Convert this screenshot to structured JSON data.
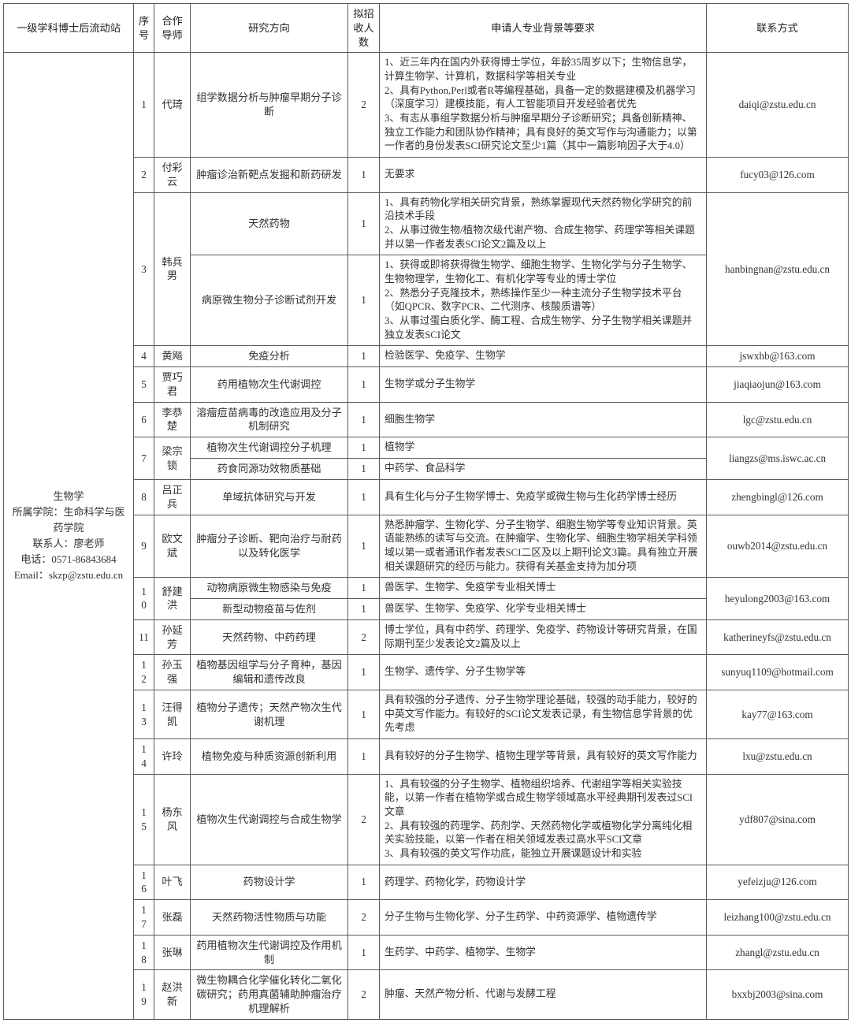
{
  "headers": {
    "c1": "一级学科博士后流动站",
    "c2": "序号",
    "c3": "合作导师",
    "c4": "研究方向",
    "c5": "拟招收人数",
    "c6": "申请人专业背景等要求",
    "c7": "联系方式"
  },
  "station": {
    "line1": "生物学",
    "line2": "所属学院：生命科学与医药学院",
    "line3": "联系人：廖老师",
    "line4": "电话：0571-86843684",
    "line5": "Email：skzp@zstu.edu.cn"
  },
  "rows": [
    {
      "seq": "1",
      "advisor": "代琦",
      "dir": "组学数据分析与肿瘤早期分子诊断",
      "count": "2",
      "req": "1、近三年内在国内外获得博士学位，年龄35周岁以下；生物信息学，计算生物学、计算机，数据科学等相关专业\n2、具有Python,Perl或者R等编程基础，具备一定的数据建模及机器学习（深度学习）建模技能，有人工智能项目开发经验者优先\n3、有志从事组学数据分析与肿瘤早期分子诊断研究；具备创新精神、独立工作能力和团队协作精神；具有良好的英文写作与沟通能力；以第一作者的身份发表SCI研究论文至少1篇（其中一篇影响因子大于4.0）",
      "contact": "daiqi@zstu.edu.cn"
    },
    {
      "seq": "2",
      "advisor": "付彩云",
      "dir": "肿瘤诊治新靶点发掘和新药研发",
      "count": "1",
      "req": "无要求",
      "contact": "fucy03@126.com"
    },
    {
      "seq": "3",
      "advisor": "韩兵男",
      "subrows": [
        {
          "dir": "天然药物",
          "count": "1",
          "req": "1、具有药物化学相关研究背景，熟练掌握现代天然药物化学研究的前沿技术手段\n2、从事过微生物/植物次级代谢产物、合成生物学、药理学等相关课题并以第一作者发表SCI论文2篇及以上"
        },
        {
          "dir": "病原微生物分子诊断试剂开发",
          "count": "1",
          "req": "1、获得或即将获得微生物学、细胞生物学、生物化学与分子生物学、生物物理学，生物化工、有机化学等专业的博士学位\n2、熟悉分子克隆技术，熟练操作至少一种主流分子生物学技术平台（如QPCR、数字PCR、二代测序、核酸质谱等）\n3、从事过蛋白质化学、酶工程、合成生物学、分子生物学相关课题并独立发表SCI论文"
        }
      ],
      "contact": "hanbingnan@zstu.edu.cn"
    },
    {
      "seq": "4",
      "advisor": "黄飚",
      "dir": "免疫分析",
      "count": "1",
      "req": "检验医学、免疫学、生物学",
      "contact": "jswxhb@163.com"
    },
    {
      "seq": "5",
      "advisor": "贾巧君",
      "dir": "药用植物次生代谢调控",
      "count": "1",
      "req": "生物学或分子生物学",
      "contact": "jiaqiaojun@163.com"
    },
    {
      "seq": "6",
      "advisor": "李恭楚",
      "dir": "溶瘤痘苗病毒的改造应用及分子机制研究",
      "count": "1",
      "req": "细胞生物学",
      "contact": "lgc@zstu.edu.cn"
    },
    {
      "seq": "7",
      "advisor": "梁宗锁",
      "subrows": [
        {
          "dir": "植物次生代谢调控分子机理",
          "count": "1",
          "req": "植物学"
        },
        {
          "dir": "药食同源功效物质基础",
          "count": "1",
          "req": "中药学、食品科学"
        }
      ],
      "contact": "liangzs@ms.iswc.ac.cn"
    },
    {
      "seq": "8",
      "advisor": "吕正兵",
      "dir": "单域抗体研究与开发",
      "count": "1",
      "req": "具有生化与分子生物学博士、免疫学或微生物与生化药学博士经历",
      "contact": "zhengbingl@126.com"
    },
    {
      "seq": "9",
      "advisor": "欧文斌",
      "dir": "肿瘤分子诊断、靶向治疗与耐药以及转化医学",
      "count": "1",
      "req": "熟悉肿瘤学、生物化学、分子生物学、细胞生物学等专业知识背景。英语能熟练的读写与交流。在肿瘤学、生物化学、细胞生物学相关学科领域以第一或者通讯作者发表SCI二区及以上期刊论文3篇。具有独立开展相关课题研究的经历与能力。获得有关基金支持为加分项",
      "contact": "ouwb2014@zstu.edu.cn"
    },
    {
      "seq": "10",
      "advisor": "舒建洪",
      "subrows": [
        {
          "dir": "动物病原微生物感染与免疫",
          "count": "1",
          "req": "兽医学、生物学、免疫学专业相关博士"
        },
        {
          "dir": "新型动物疫苗与佐剂",
          "count": "1",
          "req": "兽医学、生物学、免疫学、化学专业相关博士"
        }
      ],
      "contact": "heyulong2003@163.com"
    },
    {
      "seq": "11",
      "advisor": "孙延芳",
      "dir": "天然药物、中药药理",
      "count": "2",
      "req": "博士学位，具有中药学、药理学、免疫学、药物设计等研究背景，在国际期刊至少发表论文2篇及以上",
      "contact": "katherineyfs@zstu.edu.cn"
    },
    {
      "seq": "12",
      "advisor": "孙玉强",
      "dir": "植物基因组学与分子育种，基因编辑和遗传改良",
      "count": "1",
      "req": "生物学、遗传学、分子生物学等",
      "contact": "sunyuq1109@hotmail.com"
    },
    {
      "seq": "13",
      "advisor": "汪得凯",
      "dir": "植物分子遗传；天然产物次生代谢机理",
      "count": "1",
      "req": "具有较强的分子遗传、分子生物学理论基础，较强的动手能力，较好的中英文写作能力。有较好的SCI论文发表记录，有生物信息学背景的优先考虑",
      "contact": "kay77@163.com"
    },
    {
      "seq": "14",
      "advisor": "许玲",
      "dir": "植物免疫与种质资源创新利用",
      "count": "1",
      "req": "具有较好的分子生物学、植物生理学等背景，具有较好的英文写作能力",
      "contact": "lxu@zstu.edu.cn"
    },
    {
      "seq": "15",
      "advisor": "杨东风",
      "dir": "植物次生代谢调控与合成生物学",
      "count": "2",
      "req": "1、具有较强的分子生物学、植物组织培养、代谢组学等相关实验技能，以第一作者在植物学或合成生物学领域高水平经典期刊发表过SCI文章\n2、具有较强的药理学、药剂学、天然药物化学或植物化学分离纯化相关实验技能，以第一作者在相关领域发表过高水平SCI文章\n3、具有较强的英文写作功底，能独立开展课题设计和实验",
      "contact": "ydf807@sina.com"
    },
    {
      "seq": "16",
      "advisor": "叶飞",
      "dir": "药物设计学",
      "count": "1",
      "req": "药理学、药物化学，药物设计学",
      "contact": "yefeizju@126.com"
    },
    {
      "seq": "17",
      "advisor": "张磊",
      "dir": "天然药物活性物质与功能",
      "count": "2",
      "req": "分子生物与生物化学、分子生药学、中药资源学、植物遗传学",
      "contact": "leizhang100@zstu.edu.cn"
    },
    {
      "seq": "18",
      "advisor": "张琳",
      "dir": "药用植物次生代谢调控及作用机制",
      "count": "1",
      "req": "生药学、中药学、植物学、生物学",
      "contact": "zhangl@zstu.edu.cn"
    },
    {
      "seq": "19",
      "advisor": "赵洪新",
      "dir": "微生物耦合化学催化转化二氧化碳研究；药用真菌辅助肿瘤治疗机理解析",
      "count": "2",
      "req": "肿瘤、天然产物分析、代谢与发酵工程",
      "contact": "bxxbj2003@sina.com"
    }
  ]
}
